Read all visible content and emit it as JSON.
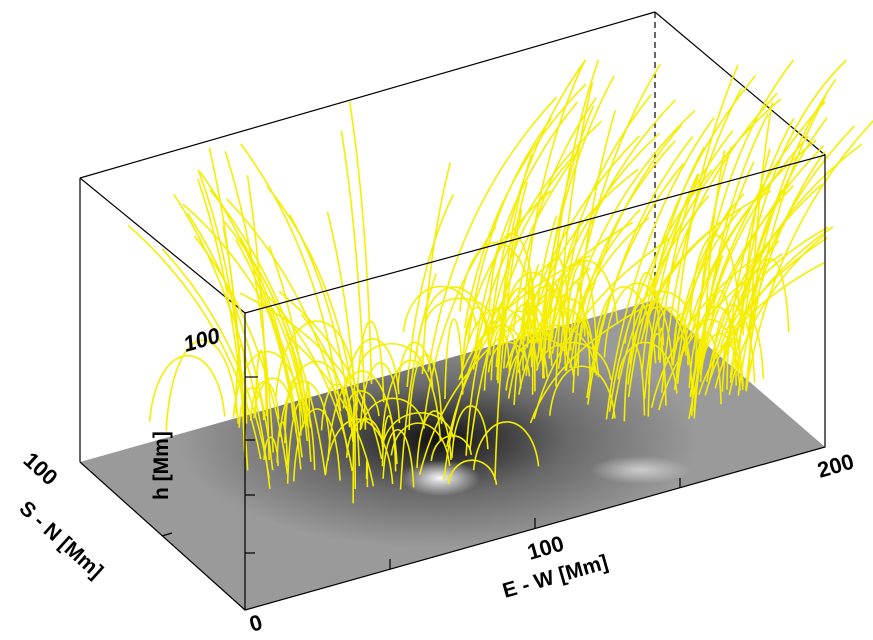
{
  "axes": {
    "x": {
      "title": "E - W [Mm]",
      "ticks": [
        "0",
        "100",
        "200"
      ]
    },
    "y": {
      "title": "S - N [Mm]",
      "ticks": [
        "100"
      ]
    },
    "z": {
      "title": "h [Mm]",
      "ticks": [
        "100"
      ]
    }
  }
}
